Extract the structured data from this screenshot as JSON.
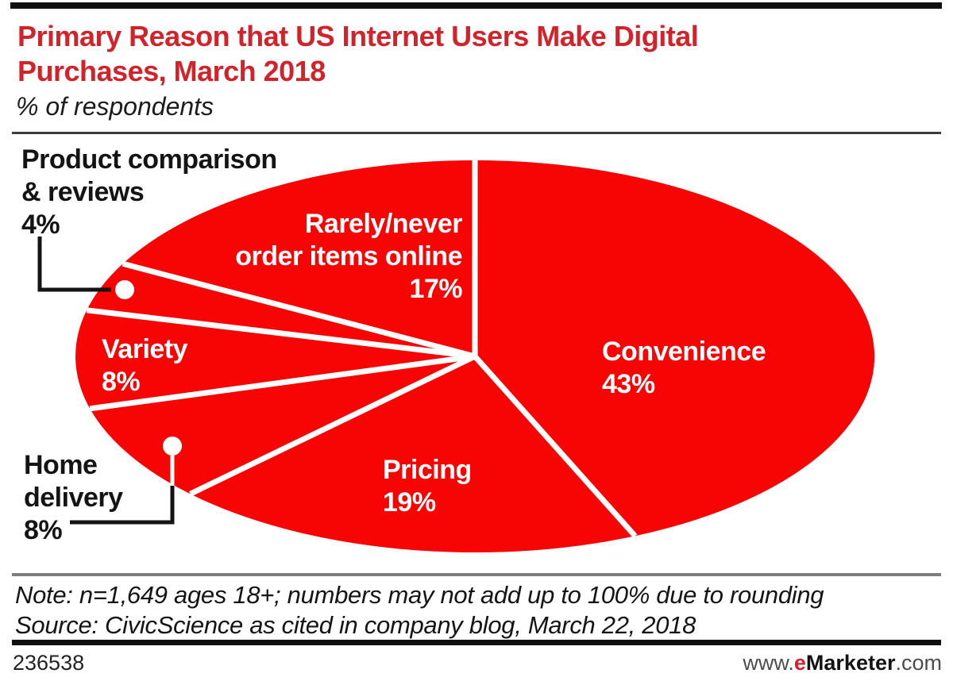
{
  "header": {
    "title": "Primary Reason that US Internet Users Make Digital Purchases, March 2018",
    "subtitle": "% of respondents"
  },
  "chart_data": {
    "type": "pie",
    "title": "Primary Reason that US Internet Users Make Digital Purchases, March 2018",
    "unit_label": "% of respondents",
    "start_angle_deg": 0,
    "direction": "clockwise",
    "legend": "none",
    "accent_color": "#f70505",
    "label_color_inside": "#ffffff",
    "label_color_outside": "#141414",
    "slices": [
      {
        "label": "Convenience",
        "value": 43,
        "pct": "43%",
        "label_lines": [
          "Convenience"
        ]
      },
      {
        "label": "Pricing",
        "value": 19,
        "pct": "19%",
        "label_lines": [
          "Pricing"
        ]
      },
      {
        "label": "Home delivery",
        "value": 8,
        "pct": "8%",
        "label_lines": [
          "Home",
          "delivery"
        ]
      },
      {
        "label": "Variety",
        "value": 8,
        "pct": "8%",
        "label_lines": [
          "Variety"
        ]
      },
      {
        "label": "Product comparison & reviews",
        "value": 4,
        "pct": "4%",
        "label_lines": [
          "Product comparison",
          "& reviews"
        ]
      },
      {
        "label": "Rarely/never order items online",
        "value": 17,
        "pct": "17%",
        "label_lines": [
          "Rarely/never",
          "order items online"
        ]
      }
    ]
  },
  "footer": {
    "note": "Note: n=1,649 ages 18+; numbers may not add up to 100% due to rounding",
    "source": "Source: CivicScience as cited in company blog, March 22, 2018",
    "chart_id": "236538",
    "url_prefix": "www.",
    "url_e": "e",
    "url_marketer": "Marketer",
    "url_suffix": ".com"
  },
  "colors": {
    "pie_red": "#f70505",
    "brand_red": "#d2232a"
  }
}
